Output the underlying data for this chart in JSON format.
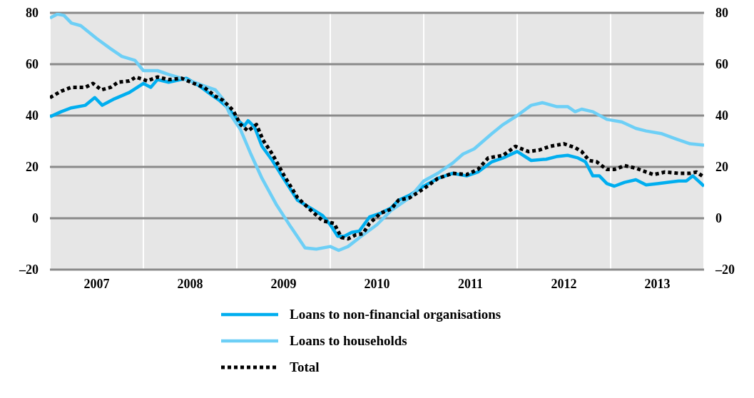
{
  "chart_data": {
    "type": "line",
    "legend": "bottom",
    "grid": true,
    "xlim": [
      2007,
      2014
    ],
    "xticks": [
      {
        "value": 2007,
        "label": null
      },
      {
        "value": 2007.5,
        "label": "2007"
      },
      {
        "value": 2008,
        "label": null
      },
      {
        "value": 2008.5,
        "label": "2008"
      },
      {
        "value": 2009,
        "label": null
      },
      {
        "value": 2009.5,
        "label": "2009"
      },
      {
        "value": 2010,
        "label": null
      },
      {
        "value": 2010.5,
        "label": "2010"
      },
      {
        "value": 2011,
        "label": null
      },
      {
        "value": 2011.5,
        "label": "2011"
      },
      {
        "value": 2012,
        "label": null
      },
      {
        "value": 2012.5,
        "label": "2012"
      },
      {
        "value": 2013,
        "label": null
      },
      {
        "value": 2013.5,
        "label": "2013"
      },
      {
        "value": 2014,
        "label": null
      }
    ],
    "ylim": [
      -20,
      80
    ],
    "yticks": [
      {
        "value": -20,
        "label": "–20"
      },
      0,
      20,
      40,
      60,
      80
    ],
    "y2lim": [
      -20,
      80
    ],
    "y2ticks": [
      {
        "value": -20,
        "label": "–20"
      },
      0,
      20,
      40,
      60,
      80
    ],
    "series": [
      {
        "name": "Loans to non-financial organisations",
        "color": "#00aeef",
        "line_style": "solid",
        "x": [
          2007,
          2007.12,
          2007.23,
          2007.38,
          2007.48,
          2007.56,
          2007.69,
          2007.85,
          2008,
          2008.08,
          2008.15,
          2008.27,
          2008.46,
          2008.58,
          2008.73,
          2008.81,
          2008.92,
          2009,
          2009.08,
          2009.12,
          2009.19,
          2009.27,
          2009.38,
          2009.5,
          2009.65,
          2009.81,
          2009.92,
          2010,
          2010.08,
          2010.15,
          2010.23,
          2010.31,
          2010.42,
          2010.54,
          2010.65,
          2010.73,
          2010.85,
          2011,
          2011.15,
          2011.31,
          2011.46,
          2011.58,
          2011.73,
          2011.85,
          2012,
          2012.15,
          2012.31,
          2012.42,
          2012.54,
          2012.65,
          2012.73,
          2012.81,
          2012.88,
          2012.96,
          2013.04,
          2013.15,
          2013.27,
          2013.38,
          2013.5,
          2013.62,
          2013.73,
          2013.81,
          2013.88,
          2014
        ],
        "values": [
          39.5,
          41.5,
          43,
          44,
          47,
          44,
          46.5,
          49,
          52.5,
          51,
          54,
          53,
          54.5,
          52,
          48,
          46,
          42.5,
          38.5,
          36,
          38,
          35.5,
          28,
          22.5,
          15.5,
          7,
          3.5,
          1,
          -2.5,
          -7,
          -7,
          -5.5,
          -5,
          0.5,
          2,
          4,
          7,
          9,
          12.5,
          15.5,
          17.5,
          16.5,
          18,
          22,
          23.5,
          26,
          22.5,
          23,
          24,
          24.5,
          23.5,
          22,
          16.5,
          16.5,
          13.5,
          12.5,
          14,
          15,
          13,
          13.5,
          14,
          14.5,
          14.5,
          16.5,
          12.5
        ]
      },
      {
        "name": "Loans to households",
        "color": "#6dcff6",
        "line_style": "solid",
        "x": [
          2007,
          2007.08,
          2007.15,
          2007.23,
          2007.33,
          2007.5,
          2007.65,
          2007.77,
          2007.91,
          2008,
          2008.15,
          2008.27,
          2008.41,
          2008.54,
          2008.69,
          2008.77,
          2008.85,
          2008.92,
          2009.04,
          2009.15,
          2009.27,
          2009.42,
          2009.58,
          2009.73,
          2009.85,
          2010,
          2010.09,
          2010.19,
          2010.35,
          2010.5,
          2010.65,
          2010.85,
          2011,
          2011.15,
          2011.31,
          2011.42,
          2011.54,
          2011.73,
          2011.85,
          2012,
          2012.15,
          2012.27,
          2012.42,
          2012.54,
          2012.62,
          2012.69,
          2012.81,
          2012.96,
          2013.12,
          2013.27,
          2013.38,
          2013.54,
          2013.69,
          2013.85,
          2014
        ],
        "values": [
          78,
          79.5,
          79,
          76,
          75,
          70,
          66,
          63,
          61.5,
          57.5,
          57.5,
          56,
          54.5,
          53,
          51,
          50,
          46.5,
          41,
          34.5,
          25,
          15.5,
          5.5,
          -3.5,
          -11.5,
          -12,
          -11,
          -12.5,
          -11,
          -6.5,
          -2.5,
          3,
          8,
          14.5,
          17.5,
          21.5,
          25,
          27,
          33,
          36.5,
          40,
          44,
          45,
          43.5,
          43.5,
          41.5,
          42.5,
          41.5,
          38.5,
          37.5,
          35,
          34,
          33,
          31,
          29,
          28.5
        ]
      },
      {
        "name": "Total",
        "color": "#000000",
        "line_style": "dotted",
        "x": [
          2007,
          2007.12,
          2007.23,
          2007.38,
          2007.46,
          2007.55,
          2007.65,
          2007.73,
          2007.85,
          2007.92,
          2008.04,
          2008.15,
          2008.27,
          2008.41,
          2008.54,
          2008.65,
          2008.77,
          2008.85,
          2008.96,
          2009.04,
          2009.12,
          2009.21,
          2009.28,
          2009.38,
          2009.5,
          2009.65,
          2009.81,
          2009.92,
          2010.04,
          2010.12,
          2010.19,
          2010.27,
          2010.35,
          2010.42,
          2010.54,
          2010.65,
          2010.73,
          2010.85,
          2011,
          2011.15,
          2011.31,
          2011.46,
          2011.58,
          2011.69,
          2011.85,
          2011.98,
          2012.12,
          2012.23,
          2012.35,
          2012.5,
          2012.62,
          2012.69,
          2012.77,
          2012.85,
          2012.96,
          2013.04,
          2013.15,
          2013.27,
          2013.38,
          2013.46,
          2013.58,
          2013.73,
          2013.85,
          2013.92,
          2014
        ],
        "values": [
          47,
          49.5,
          51,
          51,
          52.5,
          50,
          51,
          53,
          53.5,
          55,
          53.5,
          55,
          54,
          54.5,
          52.5,
          51,
          47.5,
          46,
          42,
          36.5,
          34,
          36.5,
          30.5,
          25,
          17,
          8,
          2.5,
          -1,
          -2,
          -7.5,
          -8,
          -6.5,
          -6,
          -2,
          2,
          3.5,
          7,
          8,
          11.5,
          15.5,
          17.5,
          17,
          19,
          23.5,
          24.5,
          28,
          26,
          26.5,
          28,
          29,
          27.5,
          26,
          22.5,
          22,
          19,
          19,
          20.5,
          19.5,
          18,
          17,
          18,
          17.5,
          17.5,
          18,
          16
        ]
      }
    ]
  }
}
